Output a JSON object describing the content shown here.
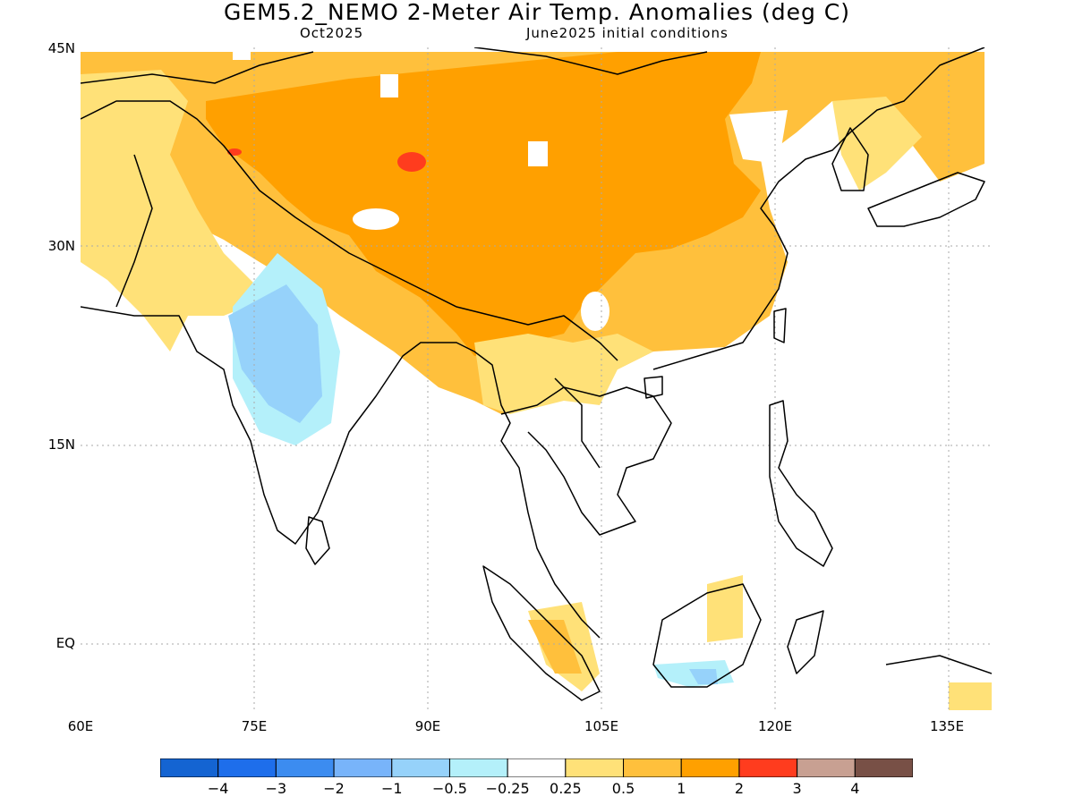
{
  "header": {
    "title": "GEM5.2_NEMO 2-Meter Air Temp. Anomalies (deg C)",
    "valid_month": "Oct2025",
    "initial_conditions": "June2025 initial conditions"
  },
  "axes": {
    "lat_labels": [
      "45N",
      "30N",
      "15N",
      "EQ"
    ],
    "lon_labels": [
      "60E",
      "75E",
      "90E",
      "105E",
      "120E",
      "135E"
    ]
  },
  "colorbar": {
    "colors": [
      "#1464d2",
      "#1e6eeb",
      "#3c8cf0",
      "#78b4fa",
      "#96d2fa",
      "#b4f0fa",
      "#ffffff",
      "#ffe178",
      "#ffc03c",
      "#ffa000",
      "#ff3c1e",
      "#c8a092",
      "#785046"
    ],
    "labels": [
      "-4",
      "-3",
      "-2",
      "-1",
      "-0.5",
      "-0.25",
      "0.25",
      "0.5",
      "1",
      "2",
      "3",
      "4"
    ]
  },
  "map_colors": {
    "land_outline": "#000000",
    "grid": "#aaaaaa"
  }
}
